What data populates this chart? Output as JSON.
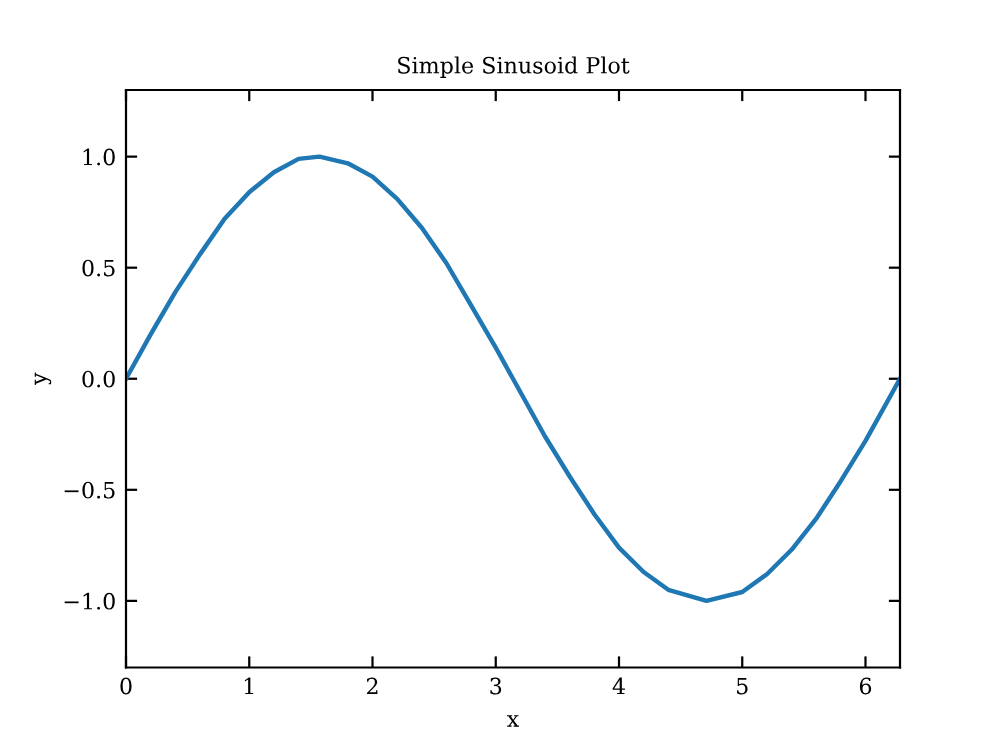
{
  "chart_data": {
    "type": "line",
    "title": "Simple Sinusoid Plot",
    "xlabel": "x",
    "ylabel": "y",
    "x": [
      0,
      0.2,
      0.4,
      0.6,
      0.8,
      1.0,
      1.2,
      1.4,
      1.57,
      1.8,
      2.0,
      2.2,
      2.4,
      2.6,
      2.8,
      3.0,
      3.14,
      3.4,
      3.6,
      3.8,
      4.0,
      4.2,
      4.4,
      4.71,
      5.0,
      5.2,
      5.4,
      5.6,
      5.8,
      6.0,
      6.28
    ],
    "series": [
      {
        "color": "#1f77b4",
        "values": [
          0,
          0.2,
          0.39,
          0.56,
          0.72,
          0.84,
          0.93,
          0.99,
          1.0,
          0.97,
          0.91,
          0.81,
          0.68,
          0.52,
          0.33,
          0.14,
          0,
          -0.26,
          -0.44,
          -0.61,
          -0.76,
          -0.87,
          -0.95,
          -1.0,
          -0.96,
          -0.88,
          -0.77,
          -0.63,
          -0.46,
          -0.28,
          0
        ]
      }
    ],
    "xlim": [
      0,
      6.28
    ],
    "ylim": [
      -1.3,
      1.3
    ],
    "xticks": [
      0,
      1,
      2,
      3,
      4,
      5,
      6
    ],
    "yticks": [
      {
        "value": -1.0,
        "label": "−1.0"
      },
      {
        "value": -0.5,
        "label": "−0.5"
      },
      {
        "value": 0.0,
        "label": "0.0"
      },
      {
        "value": 0.5,
        "label": "0.5"
      },
      {
        "value": 1.0,
        "label": "1.0"
      }
    ],
    "grid": false,
    "legend": false,
    "marker": "none",
    "line_style": "solid"
  }
}
